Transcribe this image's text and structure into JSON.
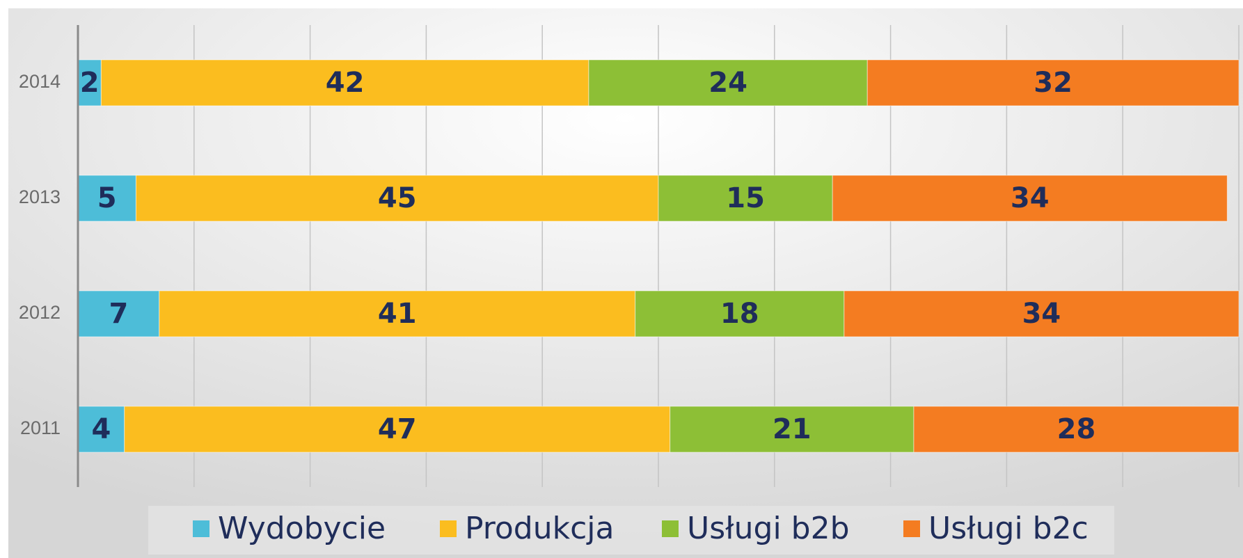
{
  "chart_data": {
    "type": "bar",
    "orientation": "horizontal",
    "stacked": true,
    "categories": [
      "2011",
      "2012",
      "2013",
      "2014"
    ],
    "series": [
      {
        "name": "Wydobycie",
        "color": "#4dbdd8",
        "values": [
          4,
          7,
          5,
          2
        ]
      },
      {
        "name": "Produkcja",
        "color": "#fbbd1f",
        "values": [
          47,
          41,
          45,
          42
        ]
      },
      {
        "name": "Usługi b2b",
        "color": "#8dbf36",
        "values": [
          21,
          18,
          15,
          24
        ]
      },
      {
        "name": "Usługi b2c",
        "color": "#f47c21",
        "values": [
          28,
          34,
          34,
          32
        ]
      }
    ],
    "xlim": [
      0,
      100
    ],
    "xticks": [
      0,
      10,
      20,
      30,
      40,
      50,
      60,
      70,
      80,
      90,
      100
    ],
    "grid": true,
    "legend": "bottom"
  }
}
